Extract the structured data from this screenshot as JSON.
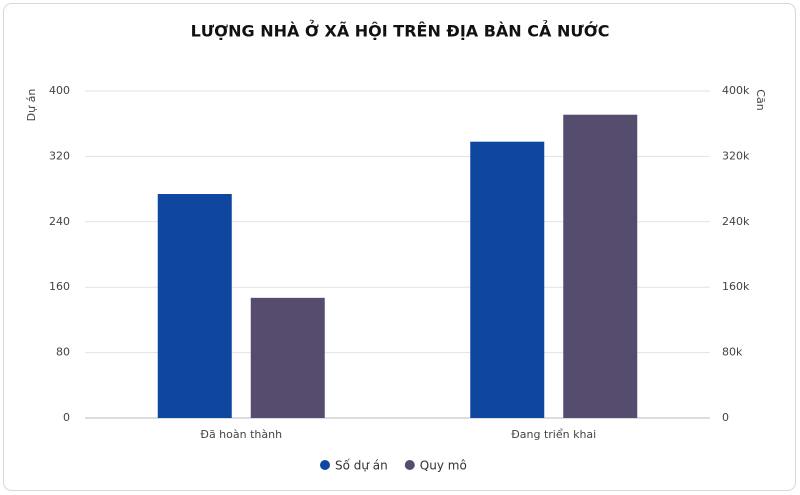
{
  "chart_data": {
    "type": "bar",
    "title": "LƯỢNG NHÀ Ở XÃ HỘI TRÊN ĐỊA BÀN CẢ NƯỚC",
    "y_label": "Dự án",
    "y2_label": "Căn",
    "categories": [
      "Đã hoàn thành",
      "Đang triển khai"
    ],
    "series": [
      {
        "name": "Số dự án",
        "color": "#0f46a0",
        "values": [
          274,
          338
        ]
      },
      {
        "name": "Quy mô",
        "color": "#554c6e",
        "values": [
          147000,
          371000
        ],
        "axis": "y2"
      }
    ],
    "ylim": [
      0,
      400
    ],
    "yticks": [
      0,
      80,
      160,
      240,
      320,
      400
    ],
    "y2lim": [
      0,
      400000
    ],
    "y2ticks": [
      0,
      {
        "value": 80000,
        "label": "80k"
      },
      {
        "value": 160000,
        "label": "160k"
      },
      {
        "value": 240000,
        "label": "240k"
      },
      {
        "value": 320000,
        "label": "320k"
      },
      {
        "value": 400000,
        "label": "400k"
      }
    ],
    "grid": true
  }
}
